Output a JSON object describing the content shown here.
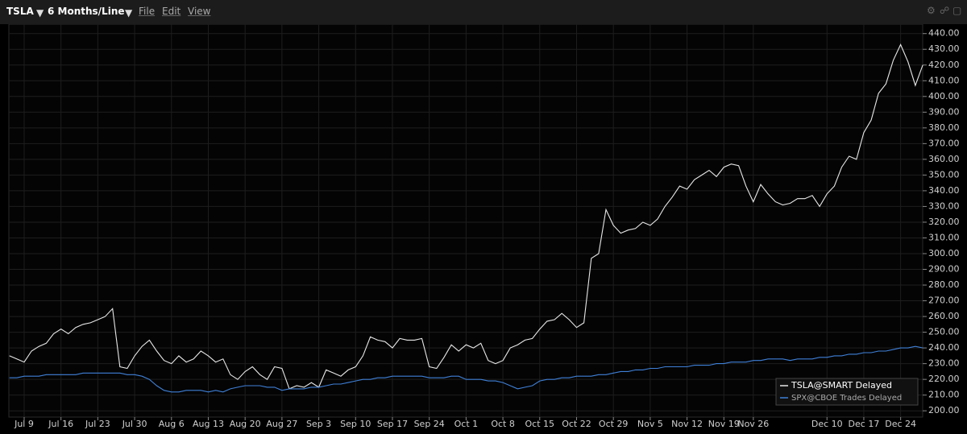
{
  "toolbar": {
    "symbol": "TSLA",
    "period": "6 Months/Line",
    "menus": [
      "File",
      "Edit",
      "View"
    ]
  },
  "chart_data": {
    "type": "line",
    "x": [
      "Jul 5",
      "Jul 6",
      "Jul 9",
      "Jul 10",
      "Jul 11",
      "Jul 12",
      "Jul 13",
      "Jul 16",
      "Jul 17",
      "Jul 18",
      "Jul 19",
      "Jul 20",
      "Jul 23",
      "Jul 24",
      "Jul 25",
      "Jul 26",
      "Jul 27",
      "Jul 30",
      "Jul 31",
      "Aug 1",
      "Aug 2",
      "Aug 3",
      "Aug 6",
      "Aug 7",
      "Aug 8",
      "Aug 9",
      "Aug 10",
      "Aug 13",
      "Aug 14",
      "Aug 15",
      "Aug 16",
      "Aug 17",
      "Aug 20",
      "Aug 21",
      "Aug 22",
      "Aug 23",
      "Aug 24",
      "Aug 27",
      "Aug 28",
      "Aug 29",
      "Aug 30",
      "Aug 31",
      "Sep 3",
      "Sep 4",
      "Sep 5",
      "Sep 6",
      "Sep 7",
      "Sep 10",
      "Sep 11",
      "Sep 12",
      "Sep 13",
      "Sep 14",
      "Sep 17",
      "Sep 18",
      "Sep 19",
      "Sep 20",
      "Sep 21",
      "Sep 24",
      "Sep 25",
      "Sep 26",
      "Sep 27",
      "Sep 28",
      "Oct 1",
      "Oct 2",
      "Oct 3",
      "Oct 4",
      "Oct 5",
      "Oct 8",
      "Oct 9",
      "Oct 10",
      "Oct 11",
      "Oct 12",
      "Oct 15",
      "Oct 16",
      "Oct 17",
      "Oct 18",
      "Oct 19",
      "Oct 22",
      "Oct 23",
      "Oct 24",
      "Oct 25",
      "Oct 26",
      "Oct 29",
      "Oct 30",
      "Oct 31",
      "Nov 1",
      "Nov 2",
      "Nov 5",
      "Nov 6",
      "Nov 7",
      "Nov 8",
      "Nov 9",
      "Nov 12",
      "Nov 13",
      "Nov 14",
      "Nov 15",
      "Nov 16",
      "Nov 19",
      "Nov 20",
      "Nov 21",
      "Nov 23",
      "Nov 26",
      "Nov 27",
      "Nov 28",
      "Nov 29",
      "Nov 30",
      "Dec 3",
      "Dec 4",
      "Dec 5",
      "Dec 6",
      "Dec 7",
      "Dec 10",
      "Dec 11",
      "Dec 12",
      "Dec 13",
      "Dec 14",
      "Dec 17",
      "Dec 18",
      "Dec 19",
      "Dec 20",
      "Dec 21",
      "Dec 24",
      "Dec 26",
      "Dec 27",
      "Dec 28"
    ],
    "xticks": [
      "Jul 9",
      "Jul 16",
      "Jul 23",
      "Jul 30",
      "Aug 6",
      "Aug 13",
      "Aug 20",
      "Aug 27",
      "Sep 3",
      "Sep 10",
      "Sep 17",
      "Sep 24",
      "Oct 1",
      "Oct 8",
      "Oct 15",
      "Oct 22",
      "Oct 29",
      "Nov 5",
      "Nov 12",
      "Nov 19",
      "Nov 26",
      "Dec 10",
      "Dec 17",
      "Dec 24"
    ],
    "series": [
      {
        "name": "TSLA@SMART Delayed",
        "color": "#e8e8e8",
        "values": [
          235,
          233,
          231,
          238,
          241,
          243,
          249,
          252,
          249,
          253,
          255,
          256,
          258,
          260,
          265,
          228,
          227,
          235,
          241,
          245,
          238,
          232,
          230,
          235,
          231,
          233,
          238,
          235,
          231,
          233,
          223,
          220,
          225,
          228,
          223,
          220,
          228,
          227,
          214,
          216,
          215,
          218,
          215,
          226,
          224,
          222,
          226,
          228,
          235,
          247,
          245,
          244,
          240,
          246,
          245,
          245,
          246,
          228,
          227,
          234,
          242,
          238,
          242,
          240,
          243,
          232,
          230,
          232,
          240,
          242,
          245,
          246,
          252,
          257,
          258,
          262,
          258,
          253,
          256,
          297,
          300,
          328,
          318,
          313,
          315,
          316,
          320,
          318,
          322,
          330,
          336,
          343,
          341,
          347,
          350,
          353,
          349,
          355,
          357,
          356,
          343,
          333,
          344,
          338,
          333,
          331,
          332,
          335,
          335,
          337,
          330,
          338,
          343,
          355,
          362,
          360,
          377,
          385,
          402,
          408,
          423,
          433,
          422,
          407,
          420
        ]
      },
      {
        "name": "SPX@CBOE Trades Delayed",
        "color": "#3f80d8",
        "values": [
          221,
          221,
          222,
          222,
          222,
          223,
          223,
          223,
          223,
          223,
          224,
          224,
          224,
          224,
          224,
          224,
          223,
          223,
          222,
          220,
          216,
          213,
          212,
          212,
          213,
          213,
          213,
          212,
          213,
          212,
          214,
          215,
          216,
          216,
          216,
          215,
          215,
          213,
          214,
          214,
          214,
          215,
          215,
          216,
          217,
          217,
          218,
          219,
          220,
          220,
          221,
          221,
          222,
          222,
          222,
          222,
          222,
          221,
          221,
          221,
          222,
          222,
          220,
          220,
          220,
          219,
          219,
          218,
          216,
          214,
          215,
          216,
          219,
          220,
          220,
          221,
          221,
          222,
          222,
          222,
          223,
          223,
          224,
          225,
          225,
          226,
          226,
          227,
          227,
          228,
          228,
          228,
          228,
          229,
          229,
          229,
          230,
          230,
          231,
          231,
          231,
          232,
          232,
          233,
          233,
          233,
          232,
          233,
          233,
          233,
          234,
          234,
          235,
          235,
          236,
          236,
          237,
          237,
          238,
          238,
          239,
          240,
          240,
          241,
          240
        ]
      }
    ],
    "ylim": [
      196,
      446
    ],
    "yticks": [
      {
        "value": 200,
        "label": "200.00"
      },
      {
        "value": 210,
        "label": "210.00"
      },
      {
        "value": 220,
        "label": "220.00"
      },
      {
        "value": 230,
        "label": "230.00"
      },
      {
        "value": 240,
        "label": "240.00"
      },
      {
        "value": 250,
        "label": "250.00"
      },
      {
        "value": 260,
        "label": "260.00"
      },
      {
        "value": 270,
        "label": "270.00"
      },
      {
        "value": 280,
        "label": "280.00"
      },
      {
        "value": 290,
        "label": "290.00"
      },
      {
        "value": 300,
        "label": "300.00"
      },
      {
        "value": 310,
        "label": "310.00"
      },
      {
        "value": 320,
        "label": "320.00"
      },
      {
        "value": 330,
        "label": "330.00"
      },
      {
        "value": 340,
        "label": "340.00"
      },
      {
        "value": 350,
        "label": "350.00"
      },
      {
        "value": 360,
        "label": "360.00"
      },
      {
        "value": 370,
        "label": "370.00"
      },
      {
        "value": 380,
        "label": "380.00"
      },
      {
        "value": 390,
        "label": "390.00"
      },
      {
        "value": 400,
        "label": "400.00"
      },
      {
        "value": 410,
        "label": "410.00"
      },
      {
        "value": 420,
        "label": "420.00"
      },
      {
        "value": 430,
        "label": "430.00"
      },
      {
        "value": 440,
        "label": "440.00"
      }
    ],
    "grid": true,
    "legend": "bottom-right"
  }
}
